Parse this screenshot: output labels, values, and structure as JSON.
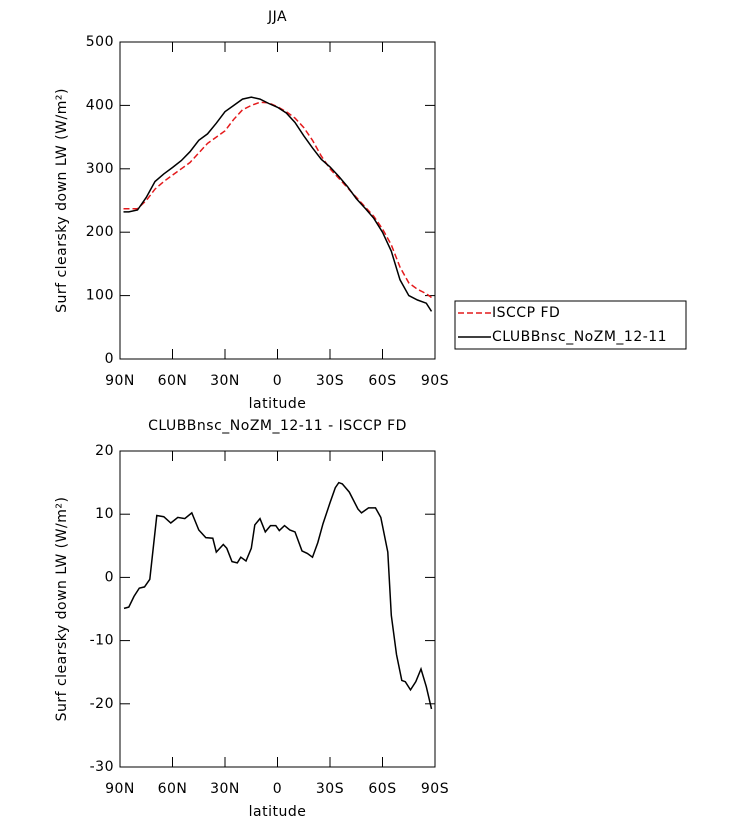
{
  "chart_data": [
    {
      "type": "line",
      "title": "JJA",
      "xlabel": "latitude",
      "ylabel": "Surf clearsky down LW (W/m²)",
      "x": [
        88,
        85,
        80,
        75,
        70,
        65,
        60,
        55,
        50,
        45,
        40,
        35,
        30,
        25,
        20,
        15,
        10,
        5,
        0,
        -5,
        -10,
        -15,
        -20,
        -25,
        -30,
        -35,
        -40,
        -45,
        -50,
        -55,
        -60,
        -65,
        -70,
        -75,
        -80,
        -85,
        -88
      ],
      "series": [
        {
          "name": "ISCCP FD",
          "color": "#e41a1c",
          "linestyle": "dashed",
          "values": [
            237,
            237,
            237,
            250,
            268,
            280,
            290,
            300,
            310,
            325,
            340,
            350,
            360,
            378,
            393,
            400,
            405,
            404,
            398,
            390,
            380,
            365,
            345,
            320,
            300,
            285,
            270,
            255,
            240,
            225,
            205,
            180,
            145,
            120,
            110,
            103,
            97
          ]
        },
        {
          "name": "CLUBBnsc_NoZM_12-11",
          "color": "#000000",
          "linestyle": "solid",
          "values": [
            232,
            232,
            235,
            255,
            280,
            292,
            302,
            313,
            327,
            345,
            355,
            372,
            390,
            400,
            410,
            413,
            410,
            403,
            397,
            388,
            373,
            352,
            333,
            315,
            303,
            288,
            272,
            253,
            238,
            222,
            200,
            170,
            125,
            100,
            93,
            88,
            75
          ]
        }
      ],
      "xlim": [
        90,
        -90
      ],
      "xticks": [
        {
          "value": 90,
          "label": "90N"
        },
        {
          "value": 60,
          "label": "60N"
        },
        {
          "value": 30,
          "label": "30N"
        },
        0,
        {
          "value": -30,
          "label": "30S"
        },
        {
          "value": -60,
          "label": "60S"
        },
        {
          "value": -90,
          "label": "90S"
        }
      ],
      "ylim": [
        0,
        500
      ],
      "yticks": [
        0,
        100,
        200,
        300,
        400,
        500
      ],
      "legend": "right"
    },
    {
      "type": "line",
      "title": "CLUBBnsc_NoZM_12-11 - ISCCP FD",
      "xlabel": "latitude",
      "ylabel": "Surf clearsky down LW (W/m²)",
      "x": [
        87.7,
        85,
        82,
        79,
        76,
        73,
        69,
        65,
        61,
        57,
        53,
        49,
        45,
        41,
        37,
        35,
        31,
        29,
        26,
        23,
        21,
        18,
        15,
        13,
        10,
        7,
        4,
        1,
        -1,
        -4,
        -7,
        -10,
        -14,
        -17,
        -20,
        -23,
        -26,
        -30,
        -33,
        -35,
        -37,
        -41,
        -46,
        -48,
        -52,
        -56,
        -59,
        -63,
        -65,
        -68,
        -71,
        -73,
        -76,
        -79,
        -82,
        -85,
        -88
      ],
      "series": [
        {
          "name": "CLUBBnsc_NoZM_12-11 - ISCCP FD",
          "color": "#000000",
          "linestyle": "solid",
          "values": [
            -4.9,
            -4.7,
            -3,
            -1.7,
            -1.5,
            -0.3,
            9.8,
            9.6,
            8.6,
            9.5,
            9.3,
            10.2,
            7.5,
            6.3,
            6.2,
            4,
            5.2,
            4.6,
            2.5,
            2.3,
            3.2,
            2.6,
            4.6,
            8.3,
            9.3,
            7.2,
            8.2,
            8.2,
            7.4,
            8.2,
            7.5,
            7.2,
            4.2,
            3.8,
            3.2,
            5.5,
            8.5,
            11.8,
            14.2,
            15,
            14.8,
            13.5,
            10.8,
            10.2,
            11,
            11,
            9.5,
            4,
            -6,
            -12.2,
            -16.3,
            -16.5,
            -17.8,
            -16.5,
            -14.5,
            -17.3,
            -20.8
          ]
        }
      ],
      "xlim": [
        90,
        -90
      ],
      "xticks": [
        {
          "value": 90,
          "label": "90N"
        },
        {
          "value": 60,
          "label": "60N"
        },
        {
          "value": 30,
          "label": "30N"
        },
        0,
        {
          "value": -30,
          "label": "30S"
        },
        {
          "value": -60,
          "label": "60S"
        },
        {
          "value": -90,
          "label": "90S"
        }
      ],
      "ylim": [
        -30,
        20
      ],
      "yticks": [
        -30,
        -20,
        -10,
        0,
        10,
        20
      ]
    }
  ]
}
